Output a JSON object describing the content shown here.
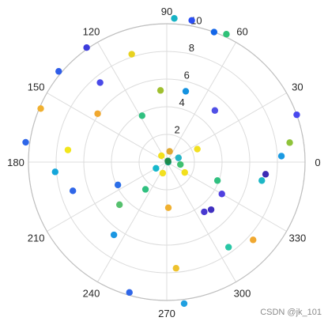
{
  "chart_data": {
    "type": "scatter",
    "coordinate_system": "polar",
    "title": "",
    "theta_unit": "degrees",
    "theta_tick_labels": [
      "0",
      "30",
      "60",
      "90",
      "120",
      "150",
      "180",
      "210",
      "240",
      "270",
      "300",
      "330"
    ],
    "r_tick_labels": [
      "2",
      "4",
      "6",
      "8",
      "10"
    ],
    "r_ticks": [
      2,
      4,
      6,
      8,
      10
    ],
    "rlim": [
      0,
      10
    ],
    "grid": true,
    "legend": "none",
    "colormap": "parula",
    "points": [
      {
        "theta": 70,
        "r": 10,
        "color": "#1466e8"
      },
      {
        "theta": 87,
        "r": 10.4,
        "color": "#17b2c4"
      },
      {
        "theta": 80,
        "r": 10.4,
        "color": "#2b4ff3"
      },
      {
        "theta": 65,
        "r": 10.2,
        "color": "#2fc178"
      },
      {
        "theta": 20,
        "r": 10,
        "color": "#4848ee"
      },
      {
        "theta": 9,
        "r": 9,
        "color": "#8fc33a"
      },
      {
        "theta": 125,
        "r": 10.1,
        "color": "#3c3cdc"
      },
      {
        "theta": 140,
        "r": 10.2,
        "color": "#2f5de8"
      },
      {
        "theta": 157,
        "r": 9.9,
        "color": "#f0b030"
      },
      {
        "theta": 172,
        "r": 10.3,
        "color": "#2e66e8"
      },
      {
        "theta": 108,
        "r": 8.2,
        "color": "#e8d220"
      },
      {
        "theta": 95,
        "r": 5.2,
        "color": "#a0c030"
      },
      {
        "theta": 130,
        "r": 7.5,
        "color": "#4a4ae8"
      },
      {
        "theta": 145,
        "r": 6.1,
        "color": "#f0a830"
      },
      {
        "theta": 118,
        "r": 3.8,
        "color": "#30c080"
      },
      {
        "theta": 75,
        "r": 5.3,
        "color": "#1592e0"
      },
      {
        "theta": 47,
        "r": 5.1,
        "color": "#5050e6"
      },
      {
        "theta": 23,
        "r": 2.4,
        "color": "#f2e020"
      },
      {
        "theta": 3,
        "r": 8.3,
        "color": "#1b9ae2"
      },
      {
        "theta": 353,
        "r": 7.2,
        "color": "#3d2cb4"
      },
      {
        "theta": 349,
        "r": 7.0,
        "color": "#1db7c6"
      },
      {
        "theta": 340,
        "r": 3.9,
        "color": "#30c080"
      },
      {
        "theta": 330,
        "r": 4.6,
        "color": "#5040e0"
      },
      {
        "theta": 313,
        "r": 4.7,
        "color": "#4030c0"
      },
      {
        "theta": 307,
        "r": 4.5,
        "color": "#4838d0"
      },
      {
        "theta": 318,
        "r": 8.4,
        "color": "#f0a830"
      },
      {
        "theta": 306,
        "r": 7.6,
        "color": "#29c7a6"
      },
      {
        "theta": 277,
        "r": 10.3,
        "color": "#20a0e0"
      },
      {
        "theta": 254,
        "r": 9.8,
        "color": "#2f66e8"
      },
      {
        "theta": 275,
        "r": 7.7,
        "color": "#eec22e"
      },
      {
        "theta": 272,
        "r": 3.3,
        "color": "#f0b030"
      },
      {
        "theta": 234,
        "r": 6.5,
        "color": "#1b97e2"
      },
      {
        "theta": 222,
        "r": 4.6,
        "color": "#56c06e"
      },
      {
        "theta": 197,
        "r": 7.1,
        "color": "#2f66e8"
      },
      {
        "theta": 185,
        "r": 8.1,
        "color": "#15a6da"
      },
      {
        "theta": 173,
        "r": 7.2,
        "color": "#f2e61c"
      },
      {
        "theta": 205,
        "r": 3.9,
        "color": "#2b6ee8"
      },
      {
        "theta": 232,
        "r": 2.5,
        "color": "#30c080"
      },
      {
        "theta": 330,
        "r": 1.5,
        "color": "#f2e01c"
      },
      {
        "theta": 210,
        "r": 0.9,
        "color": "#17b8cc"
      },
      {
        "theta": 250,
        "r": 0.85,
        "color": "#f2e020"
      },
      {
        "theta": 20,
        "r": 0.9,
        "color": "#25b5c6"
      },
      {
        "theta": 350,
        "r": 1.0,
        "color": "#40c070"
      },
      {
        "theta": 130,
        "r": 0.6,
        "color": "#f2e01c"
      },
      {
        "theta": 75,
        "r": 0.8,
        "color": "#e0a830"
      },
      {
        "theta": 0,
        "r": 0.1,
        "color": "#10a080"
      },
      {
        "theta": 45,
        "r": 0.12,
        "color": "#1c8a4a"
      }
    ]
  },
  "watermark": "CSDN @jk_101"
}
